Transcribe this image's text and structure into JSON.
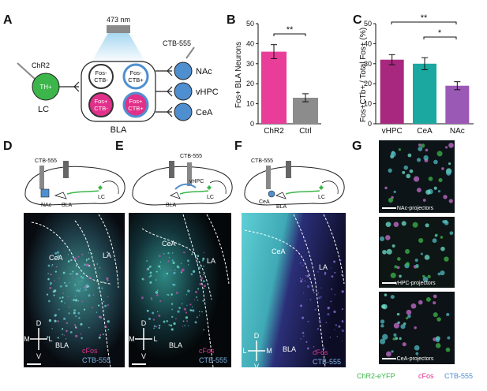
{
  "panels": {
    "A": {
      "letter": "A",
      "laser": "473 nm",
      "virus": "ChR2",
      "cell": "TH+",
      "region_lc": "LC",
      "region_bla": "BLA",
      "tracer": "CTB-555",
      "quadrants": [
        {
          "line1": "Fos-",
          "line2": "CTB-"
        },
        {
          "line1": "Fos-",
          "line2": "CTB+"
        },
        {
          "line1": "Fos+",
          "line2": "CTB-"
        },
        {
          "line1": "Fos+",
          "line2": "CTB+"
        }
      ],
      "targets": [
        "NAc",
        "vHPC",
        "CeA"
      ],
      "colors": {
        "green": "#3cb54a",
        "magenta": "#e0308a",
        "blue": "#4f8fd0",
        "light_blue": "#7fb4e6"
      }
    },
    "B": {
      "letter": "B",
      "significance": "**"
    },
    "C": {
      "letter": "C",
      "sig_top": "**",
      "sig_inner": "*"
    },
    "D": {
      "letter": "D",
      "tracer": "CTB-555",
      "regions_schematic": [
        "NAc",
        "BLA",
        "LC"
      ],
      "labels": {
        "cea": "CeA",
        "la": "LA",
        "bla": "BLA"
      },
      "legend": [
        "cFos",
        "CTB-555"
      ],
      "compass": {
        "d": "D",
        "v": "V",
        "m": "M",
        "l": "L"
      }
    },
    "E": {
      "letter": "E",
      "tracer": "CTB-555",
      "regions_schematic": [
        "vHPC",
        "BLA",
        "LC"
      ],
      "labels": {
        "cea": "CeA",
        "la": "LA",
        "bla": "BLA"
      },
      "legend": [
        "cFos",
        "CTB-555"
      ],
      "compass": {
        "d": "D",
        "v": "V",
        "m": "M",
        "l": "L"
      }
    },
    "F": {
      "letter": "F",
      "tracer": "CTB-555",
      "regions_schematic": [
        "CeA",
        "BLA",
        "LC"
      ],
      "labels": {
        "cea": "CeA",
        "la": "LA",
        "bla": "BLA"
      },
      "legend": [
        "cFos",
        "CTB-555"
      ],
      "compass": {
        "d": "D",
        "v": "V",
        "l": "L",
        "m": "M"
      }
    },
    "G": {
      "letter": "G",
      "captions": [
        "NAc-projectors",
        "vHPC-projectors",
        "CeA-projectors"
      ],
      "legend": [
        "ChR2-eYFP",
        "cFos",
        "CTB-555"
      ]
    }
  },
  "chart_data": [
    {
      "panel": "B",
      "type": "bar",
      "categories": [
        "ChR2",
        "Ctrl"
      ],
      "values": [
        36,
        13
      ],
      "errors": [
        3.5,
        2
      ],
      "colors": [
        "#e83e9a",
        "#8c8c8c"
      ],
      "ylabel": "Fos+ BLA Neurons",
      "ylim": [
        0,
        50
      ],
      "yticks": [
        0,
        10,
        20,
        30,
        40,
        50
      ]
    },
    {
      "panel": "C",
      "type": "bar",
      "categories": [
        "vHPC",
        "CeA",
        "NAc"
      ],
      "values": [
        32,
        30,
        19
      ],
      "errors": [
        2.5,
        3,
        2
      ],
      "colors": [
        "#a8287f",
        "#1aa8a0",
        "#9b59b6"
      ],
      "ylabel": "Fos+CTb+ / Total Fos+ (%)",
      "ylim": [
        0,
        50
      ],
      "yticks": [
        0,
        10,
        20,
        30,
        40,
        50
      ]
    }
  ]
}
